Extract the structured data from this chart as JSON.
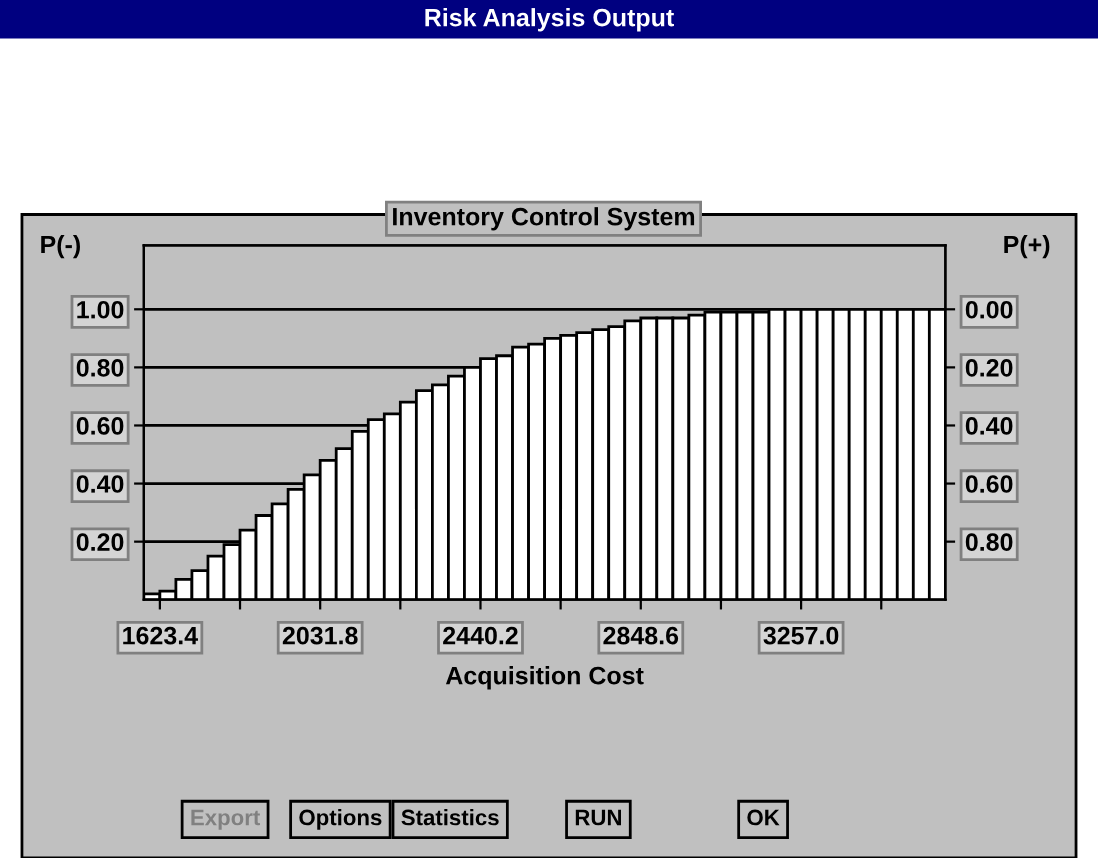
{
  "chart_data": {
    "type": "histogram",
    "title": "Inventory Control System",
    "xlabel": "Acquisition Cost",
    "ylabel": "P(-)",
    "y2label": "P(+)",
    "annotations": [
      "Risk Analysis Output",
      "Export",
      "Options",
      "Statistics",
      "RUN",
      "OK"
    ],
    "bins": [
      1582.56,
      1623.4,
      1664.24,
      1705.08,
      1745.92,
      1786.76,
      1827.6,
      1868.44,
      1909.28,
      1950.12,
      1990.96,
      2031.8,
      2072.64,
      2113.48,
      2154.32,
      2195.16,
      2236.0,
      2276.84,
      2317.68,
      2358.52,
      2399.36,
      2440.2,
      2481.04,
      2521.88,
      2562.72,
      2603.56,
      2644.4,
      2685.24,
      2726.08,
      2766.92,
      2807.76,
      2848.6,
      2889.44,
      2930.28,
      2971.12,
      3011.96,
      3052.8,
      3093.64,
      3134.48,
      3175.32,
      3216.16,
      3257.0,
      3297.84,
      3338.68,
      3379.52,
      3420.36,
      3461.2,
      3502.04,
      3542.88,
      3583.72,
      3624.56
    ],
    "values": [
      0.02,
      0.03,
      0.07,
      0.1,
      0.15,
      0.19,
      0.24,
      0.29,
      0.33,
      0.38,
      0.43,
      0.48,
      0.52,
      0.58,
      0.62,
      0.64,
      0.68,
      0.72,
      0.74,
      0.77,
      0.8,
      0.83,
      0.84,
      0.87,
      0.88,
      0.9,
      0.91,
      0.92,
      0.93,
      0.94,
      0.96,
      0.97,
      0.97,
      0.97,
      0.98,
      0.99,
      0.99,
      0.99,
      0.99,
      1.0,
      1.0,
      1.0,
      1.0,
      1.0,
      1.0,
      1.0,
      1.0,
      1.0,
      1.0,
      1.0
    ],
    "color": "#ffffff",
    "xlim": [
      1582.56,
      3624.56
    ],
    "xticks": [
      1623.4,
      {
        "value": 1827.6,
        "label": null
      },
      2031.8,
      {
        "value": 2236.0,
        "label": null
      },
      2440.2,
      {
        "value": 2644.4,
        "label": null
      },
      2848.6,
      {
        "value": 3052.8,
        "label": null
      },
      {
        "value": 3257.0,
        "label": "3257.0"
      },
      {
        "value": 3461.2,
        "label": null
      }
    ],
    "ylim": [
      0,
      1.22
    ],
    "yticks": [
      {
        "value": 0.2,
        "label": "0.20"
      },
      {
        "value": 0.4,
        "label": "0.40"
      },
      {
        "value": 0.6,
        "label": "0.60"
      },
      {
        "value": 0.8,
        "label": "0.80"
      },
      {
        "value": 1.0,
        "label": "1.00"
      }
    ],
    "y2lim": [
      1,
      -0.22
    ],
    "y2ticks": [
      {
        "value": 0.0,
        "label": "0.00"
      },
      {
        "value": 0.2,
        "label": "0.20"
      },
      {
        "value": 0.4,
        "label": "0.40"
      },
      {
        "value": 0.6,
        "label": "0.60"
      },
      {
        "value": 0.8,
        "label": "0.80"
      }
    ],
    "grid": "y"
  }
}
